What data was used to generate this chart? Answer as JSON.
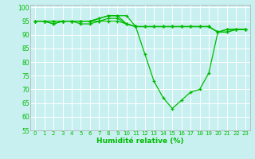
{
  "xlabel": "Humidité relative (%)",
  "xlim": [
    -0.5,
    23.5
  ],
  "ylim": [
    55,
    101
  ],
  "yticks": [
    55,
    60,
    65,
    70,
    75,
    80,
    85,
    90,
    95,
    100
  ],
  "xticks": [
    0,
    1,
    2,
    3,
    4,
    5,
    6,
    7,
    8,
    9,
    10,
    11,
    12,
    13,
    14,
    15,
    16,
    17,
    18,
    19,
    20,
    21,
    22,
    23
  ],
  "background_color": "#c8f0f0",
  "grid_color": "#ffffff",
  "line_color": "#00bb00",
  "series": [
    {
      "x": [
        0,
        1,
        2,
        3,
        4,
        5,
        6,
        7,
        8,
        9,
        10,
        11,
        12,
        13,
        14,
        15,
        16,
        17,
        18,
        19,
        20,
        21,
        22,
        23
      ],
      "y": [
        95,
        95,
        95,
        95,
        95,
        95,
        95,
        96,
        97,
        97,
        97,
        93,
        83,
        73,
        67,
        63,
        66,
        69,
        70,
        76,
        91,
        92,
        92,
        92
      ]
    },
    {
      "x": [
        0,
        1,
        2,
        3,
        4,
        5,
        6,
        7,
        8,
        9,
        10,
        11,
        12,
        13,
        14,
        15,
        16,
        17,
        18,
        19,
        20,
        21,
        22,
        23
      ],
      "y": [
        95,
        95,
        95,
        95,
        95,
        95,
        95,
        96,
        97,
        97,
        94,
        93,
        93,
        93,
        93,
        93,
        93,
        93,
        93,
        93,
        91,
        92,
        92,
        92
      ]
    },
    {
      "x": [
        0,
        1,
        2,
        3,
        4,
        5,
        6,
        7,
        8,
        9,
        10,
        11,
        12,
        13,
        14,
        15,
        16,
        17,
        18,
        19,
        20,
        21,
        22,
        23
      ],
      "y": [
        95,
        95,
        94,
        95,
        95,
        95,
        95,
        95,
        96,
        96,
        94,
        93,
        93,
        93,
        93,
        93,
        93,
        93,
        93,
        93,
        91,
        91,
        92,
        92
      ]
    },
    {
      "x": [
        0,
        1,
        2,
        3,
        4,
        5,
        6,
        7,
        8,
        9,
        10,
        11,
        12,
        13,
        14,
        15,
        16,
        17,
        18,
        19,
        20,
        21,
        22,
        23
      ],
      "y": [
        95,
        95,
        94,
        95,
        95,
        94,
        94,
        95,
        95,
        95,
        94,
        93,
        93,
        93,
        93,
        93,
        93,
        93,
        93,
        93,
        91,
        91,
        92,
        92
      ]
    }
  ]
}
